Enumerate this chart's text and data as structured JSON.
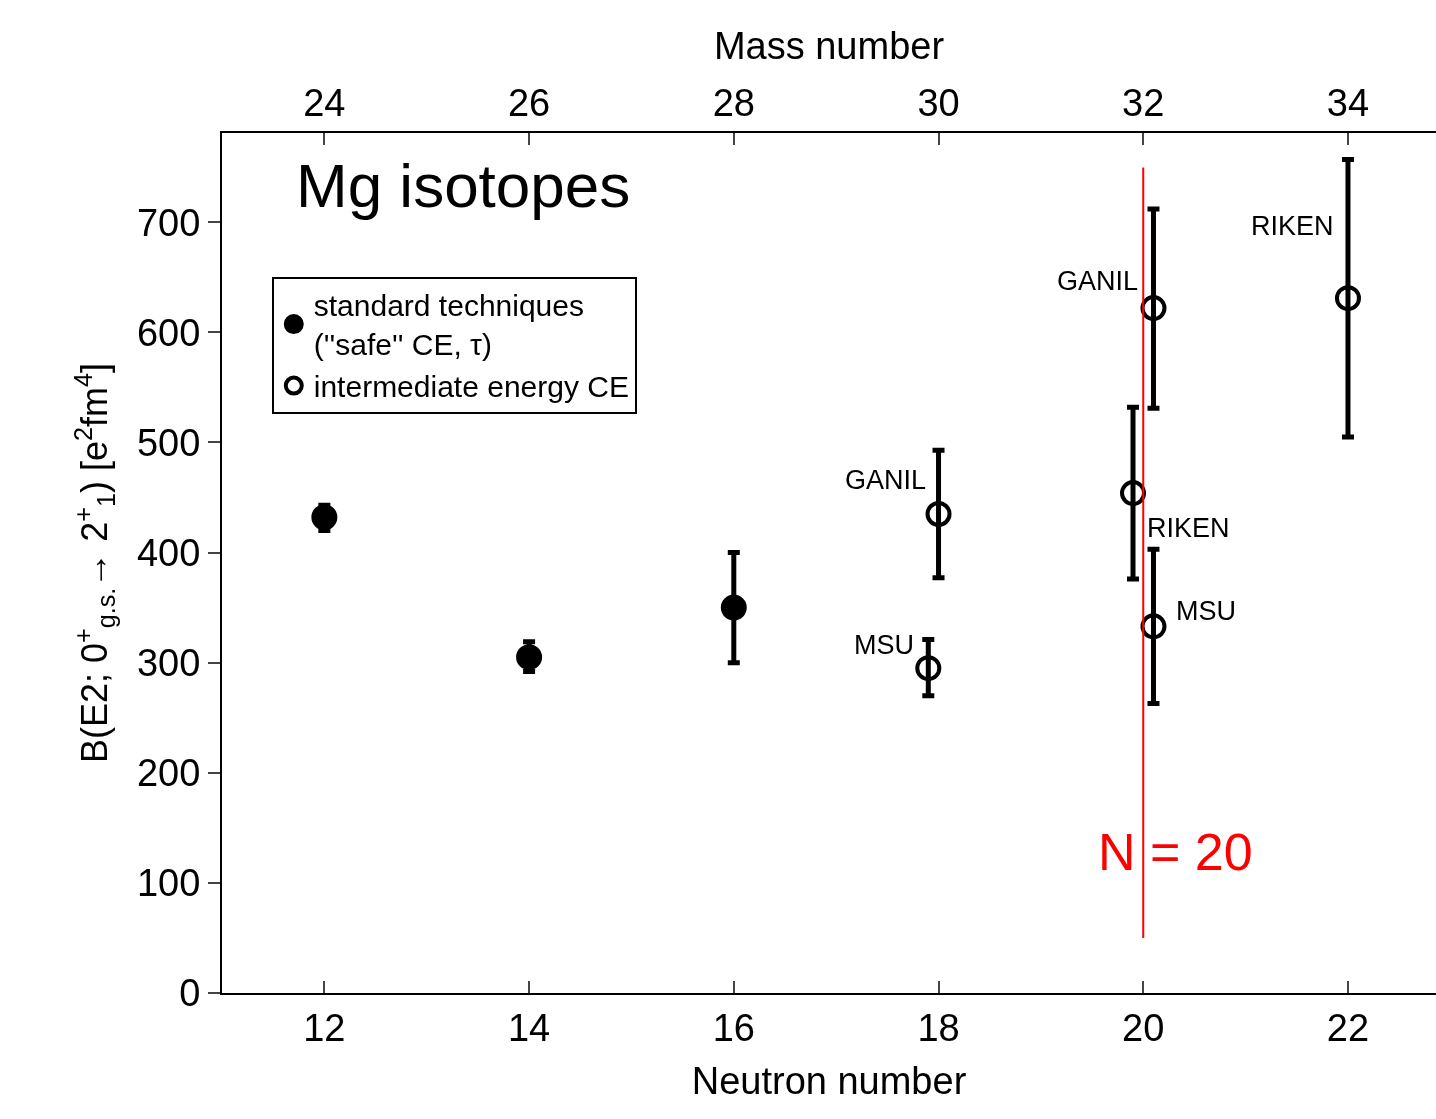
{
  "chart_data": {
    "type": "scatter",
    "title": "Mg isotopes",
    "xlabel": "Neutron number",
    "x2label": "Mass number",
    "ylabel": "B(E2; 0$^{+}$$_{g.s.}$→ 2$^{+}$$_{1}$) [e$^{2}$fm$^{4}$]",
    "xlim": [
      11.0,
      22.86
    ],
    "xticks": [
      12,
      14,
      16,
      18,
      20,
      22
    ],
    "x2lim": [
      23.0,
      34.86
    ],
    "x2ticks": [
      24,
      26,
      28,
      30,
      32,
      34
    ],
    "ylim": [
      0,
      781
    ],
    "yticks": [
      0,
      100,
      200,
      300,
      400,
      500,
      600,
      700
    ],
    "series": [
      {
        "name": "standard techniques\n(''safe'' CE, τ)",
        "color": "#000000",
        "marker": "circle",
        "x": [
          12,
          14,
          16
        ],
        "values": [
          432,
          305,
          350
        ],
        "errors": [
          [
            420,
            443
          ],
          [
            292,
            319
          ],
          [
            300,
            400
          ]
        ]
      },
      {
        "name": "intermediate energy CE",
        "color": "#000000",
        "marker": "circle-open",
        "x": [
          17.9,
          18,
          19.9,
          20.1,
          20.1,
          22
        ],
        "values": [
          295,
          435,
          454,
          622,
          333,
          631
        ],
        "errors": [
          [
            270,
            321
          ],
          [
            377,
            493
          ],
          [
            376,
            532
          ],
          [
            531,
            712
          ],
          [
            263,
            403
          ],
          [
            505,
            757
          ]
        ]
      }
    ],
    "ref_lines": [
      {
        "axis": "x",
        "value": 20,
        "label": "N = 20",
        "color": "#ff0000",
        "line_style": "solid"
      }
    ],
    "annotations": [
      {
        "text": "GANIL",
        "x": 18,
        "y": 435
      },
      {
        "text": "MSU",
        "x": 17.9,
        "y": 295
      },
      {
        "text": "GANIL",
        "x": 20.1,
        "y": 622
      },
      {
        "text": "RIKEN",
        "x": 19.9,
        "y": 454
      },
      {
        "text": "MSU",
        "x": 20.1,
        "y": 333
      },
      {
        "text": "RIKEN",
        "x": 22,
        "y": 631
      }
    ],
    "legend": "top left"
  }
}
